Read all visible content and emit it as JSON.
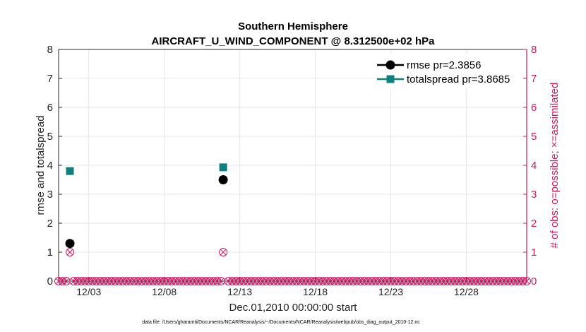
{
  "chart_data": {
    "type": "scatter",
    "title": "Southern Hemisphere",
    "subtitle": "AIRCRAFT_U_WIND_COMPONENT @ 8.312500e+02 hPa",
    "xlabel": "Dec.01,2010 00:00:00 start",
    "ylabel": "rmse and totalspread",
    "ylabel_right": "# of obs: o=possible; ×=assimilated",
    "footnote": "data file: /Users/gharamti/Documents/NCAR/Reanalysis/~/Documents/NCAR/Reanalysis/webpub/obs_diag_output_2010-12.nc",
    "xlim": [
      0,
      31
    ],
    "ylim": [
      0,
      8
    ],
    "ylim_right": [
      0,
      8
    ],
    "yticks": [
      "0",
      "1",
      "2",
      "3",
      "4",
      "5",
      "6",
      "7",
      "8"
    ],
    "yticks_right": [
      "0",
      "1",
      "2",
      "3",
      "4",
      "5",
      "6",
      "7",
      "8"
    ],
    "xticks": [
      {
        "x": 2,
        "label": "12/03"
      },
      {
        "x": 7,
        "label": "12/08"
      },
      {
        "x": 12,
        "label": "12/13"
      },
      {
        "x": 17,
        "label": "12/18"
      },
      {
        "x": 22,
        "label": "12/23"
      },
      {
        "x": 27,
        "label": "12/28"
      }
    ],
    "grid": true,
    "legend_position": "top-right",
    "series": [
      {
        "name": "rmse pr=2.3856",
        "color": "#000000",
        "marker": "circle",
        "x": [
          0.75,
          10.9
        ],
        "y": [
          1.3,
          3.5
        ]
      },
      {
        "name": "totalspread pr=3.8685",
        "color": "#0f8080",
        "marker": "square",
        "x": [
          0.75,
          10.9
        ],
        "y": [
          3.8,
          3.93
        ]
      }
    ],
    "obs_counts": {
      "color": "#cc1a66",
      "x_start": 0,
      "x_end": 31,
      "x_step": 0.25,
      "nonzero": [
        {
          "x": 0.75,
          "count": 1
        },
        {
          "x": 10.9,
          "count": 1
        }
      ]
    }
  }
}
